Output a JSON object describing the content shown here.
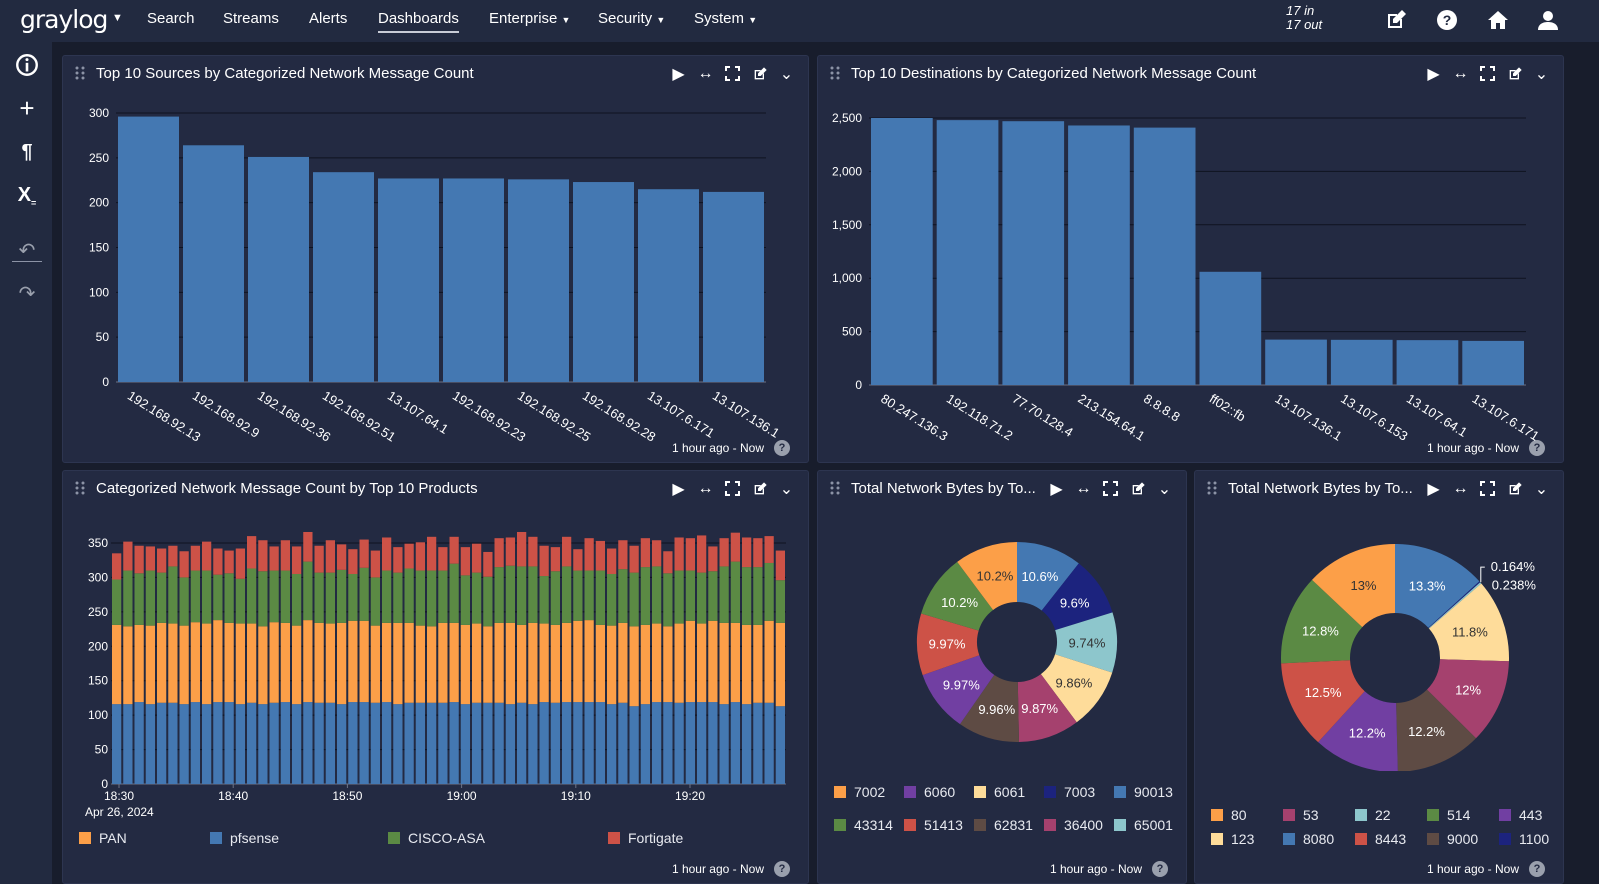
{
  "nav": {
    "logo": "graylog",
    "items": [
      {
        "label": "Search"
      },
      {
        "label": "Streams"
      },
      {
        "label": "Alerts"
      },
      {
        "label": "Dashboards",
        "active": true
      },
      {
        "label": "Enterprise",
        "dropdown": true
      },
      {
        "label": "Security",
        "dropdown": true
      },
      {
        "label": "System",
        "dropdown": true
      }
    ],
    "throughput_in": "17 in",
    "throughput_out": "17 out",
    "right_icons": [
      "edit-icon",
      "help-icon",
      "home-icon",
      "user-icon"
    ]
  },
  "sidebar": {
    "icons": [
      "info-icon",
      "plus-icon",
      "pilcrow-icon",
      "parameter-icon",
      "undo-icon",
      "redo-icon"
    ]
  },
  "footer_text": "1 hour ago - Now",
  "help_glyph": "?",
  "colors": {
    "bar": "#4478b2",
    "PAN": "#fc9f48",
    "pfsense": "#4478b2",
    "CISCO-ASA": "#5b8a44",
    "Fortigate": "#cd5247"
  },
  "panels": [
    {
      "title": "Top 10 Sources by Categorized Network Message Count"
    },
    {
      "title": "Top 10 Destinations by Categorized Network Message Count"
    },
    {
      "title": "Categorized Network Message Count by Top 10 Products"
    },
    {
      "title": "Total Network Bytes by To..."
    },
    {
      "title": "Total Network Bytes by To..."
    }
  ],
  "chart_data": [
    {
      "type": "bar",
      "categories": [
        "192.168.92.13",
        "192.168.92.9",
        "192.168.92.36",
        "192.168.92.51",
        "13.107.64.1",
        "192.168.92.23",
        "192.168.92.25",
        "192.168.92.28",
        "13.107.6.171",
        "13.107.136.1"
      ],
      "values": [
        296,
        264,
        251,
        234,
        227,
        227,
        226,
        223,
        215,
        212
      ],
      "ylim": [
        0,
        300
      ],
      "yticks": [
        "0",
        "50",
        "100",
        "150",
        "200",
        "250",
        "300"
      ],
      "grid": true
    },
    {
      "type": "bar",
      "categories": [
        "80.247.136.3",
        "192.118.71.2",
        "77.70.128.4",
        "213.154.64.1",
        "8.8.8.8",
        "ff02::fb",
        "13.107.136.1",
        "13.107.6.153",
        "13.107.64.1",
        "13.107.6.171"
      ],
      "values": [
        2500,
        2480,
        2470,
        2430,
        2410,
        1060,
        425,
        423,
        420,
        413
      ],
      "ylim": [
        0,
        2500
      ],
      "yticks": [
        "0",
        "500",
        "1,000",
        "1,500",
        "2,000",
        "2,500"
      ],
      "grid": true
    },
    {
      "type": "bar",
      "stacked": true,
      "x_tick_labels": [
        "18:30",
        "18:40",
        "18:50",
        "19:00",
        "19:10",
        "19:20"
      ],
      "x_date_label": "Apr 26, 2024",
      "ylim": [
        0,
        350
      ],
      "yticks": [
        "0",
        "50",
        "100",
        "150",
        "200",
        "250",
        "300",
        "350"
      ],
      "grid": true,
      "legend": "bottom",
      "legend_order": [
        "PAN",
        "pfsense",
        "CISCO-ASA",
        "Fortigate"
      ],
      "series": [
        {
          "name": "pfsense",
          "values": [
            116,
            116,
            119,
            116,
            118,
            118,
            116,
            119,
            116,
            119,
            119,
            116,
            118,
            116,
            118,
            119,
            116,
            119,
            118,
            118,
            116,
            119,
            119,
            118,
            119,
            116,
            118,
            118,
            118,
            118,
            119,
            116,
            118,
            118,
            118,
            116,
            118,
            116,
            119,
            118,
            119,
            119,
            119,
            119,
            116,
            118,
            113,
            116,
            119,
            119,
            118,
            119,
            119,
            119,
            116,
            119,
            116,
            118,
            118,
            113
          ]
        },
        {
          "name": "PAN",
          "values": [
            115,
            113,
            112,
            114,
            116,
            115,
            114,
            116,
            117,
            119,
            115,
            117,
            115,
            113,
            117,
            115,
            114,
            119,
            116,
            115,
            118,
            118,
            118,
            112,
            115,
            118,
            116,
            112,
            111,
            116,
            115,
            115,
            115,
            111,
            116,
            118,
            113,
            118,
            114,
            113,
            115,
            118,
            119,
            112,
            114,
            116,
            116,
            115,
            114,
            110,
            115,
            118,
            114,
            118,
            118,
            115,
            115,
            113,
            119,
            121
          ]
        },
        {
          "name": "CISCO-ASA",
          "values": [
            66,
            81,
            75,
            80,
            73,
            83,
            70,
            75,
            77,
            66,
            72,
            65,
            80,
            80,
            75,
            76,
            75,
            85,
            73,
            74,
            77,
            68,
            77,
            70,
            76,
            73,
            79,
            80,
            81,
            76,
            86,
            72,
            74,
            72,
            81,
            83,
            85,
            82,
            69,
            78,
            82,
            73,
            72,
            79,
            75,
            78,
            78,
            84,
            83,
            77,
            77,
            73,
            74,
            72,
            82,
            89,
            84,
            84,
            84,
            62
          ]
        },
        {
          "name": "Fortigate",
          "values": [
            38,
            42,
            40,
            35,
            35,
            30,
            38,
            36,
            42,
            38,
            33,
            44,
            47,
            45,
            35,
            44,
            40,
            43,
            39,
            47,
            37,
            36,
            41,
            39,
            48,
            37,
            36,
            41,
            49,
            34,
            39,
            41,
            42,
            36,
            42,
            41,
            50,
            43,
            44,
            35,
            43,
            31,
            47,
            43,
            37,
            42,
            39,
            42,
            38,
            32,
            48,
            47,
            54,
            36,
            41,
            42,
            43,
            42,
            39,
            43
          ]
        }
      ]
    },
    {
      "type": "pie",
      "donut": true,
      "slices": [
        {
          "label": "90013",
          "value": 10.6,
          "text": "10.6%",
          "color": "#4478b2"
        },
        {
          "label": "7003",
          "value": 9.6,
          "text": "9.6%",
          "color": "#1c237e"
        },
        {
          "label": "65001",
          "value": 9.74,
          "text": "9.74%",
          "color": "#8dc6cc"
        },
        {
          "label": "6061",
          "value": 9.86,
          "text": "9.86%",
          "color": "#fedc9a"
        },
        {
          "label": "36400",
          "value": 9.87,
          "text": "9.87%",
          "color": "#a5416e"
        },
        {
          "label": "62831",
          "value": 9.96,
          "text": "9.96%",
          "color": "#5e4b44"
        },
        {
          "label": "6060",
          "value": 9.97,
          "text": "9.97%",
          "color": "#713fa2"
        },
        {
          "label": "51413",
          "value": 9.97,
          "text": "9.97%",
          "color": "#cd5247"
        },
        {
          "label": "43314",
          "value": 10.2,
          "text": "10.2%",
          "color": "#5b8a44"
        },
        {
          "label": "7002",
          "value": 10.2,
          "text": "10.2%",
          "color": "#fc9f48"
        }
      ],
      "legend_order": [
        "7002",
        "6060",
        "6061",
        "7003",
        "90013",
        "43314",
        "51413",
        "62831",
        "36400",
        "65001"
      ],
      "legend": "bottom"
    },
    {
      "type": "pie",
      "donut": true,
      "slices": [
        {
          "label": "8080",
          "value": 13.3,
          "text": "13.3%",
          "color": "#4478b2"
        },
        {
          "label": "1100",
          "value": 0.164,
          "text": "0.164%",
          "color": "#1c237e"
        },
        {
          "label": "22",
          "value": 0.238,
          "text": "0.238%",
          "color": "#8dc6cc"
        },
        {
          "label": "123",
          "value": 11.8,
          "text": "11.8%",
          "color": "#fedc9a"
        },
        {
          "label": "53",
          "value": 12,
          "text": "12%",
          "color": "#a5416e"
        },
        {
          "label": "9000",
          "value": 12.2,
          "text": "12.2%",
          "color": "#5e4b44"
        },
        {
          "label": "443",
          "value": 12.2,
          "text": "12.2%",
          "color": "#713fa2"
        },
        {
          "label": "8443",
          "value": 12.5,
          "text": "12.5%",
          "color": "#cd5247"
        },
        {
          "label": "514",
          "value": 12.8,
          "text": "12.8%",
          "color": "#5b8a44"
        },
        {
          "label": "80",
          "value": 13,
          "text": "13%",
          "color": "#fc9f48"
        }
      ],
      "legend_order": [
        "80",
        "53",
        "22",
        "514",
        "443",
        "123",
        "8080",
        "8443",
        "9000",
        "1100"
      ],
      "legend": "bottom"
    }
  ]
}
